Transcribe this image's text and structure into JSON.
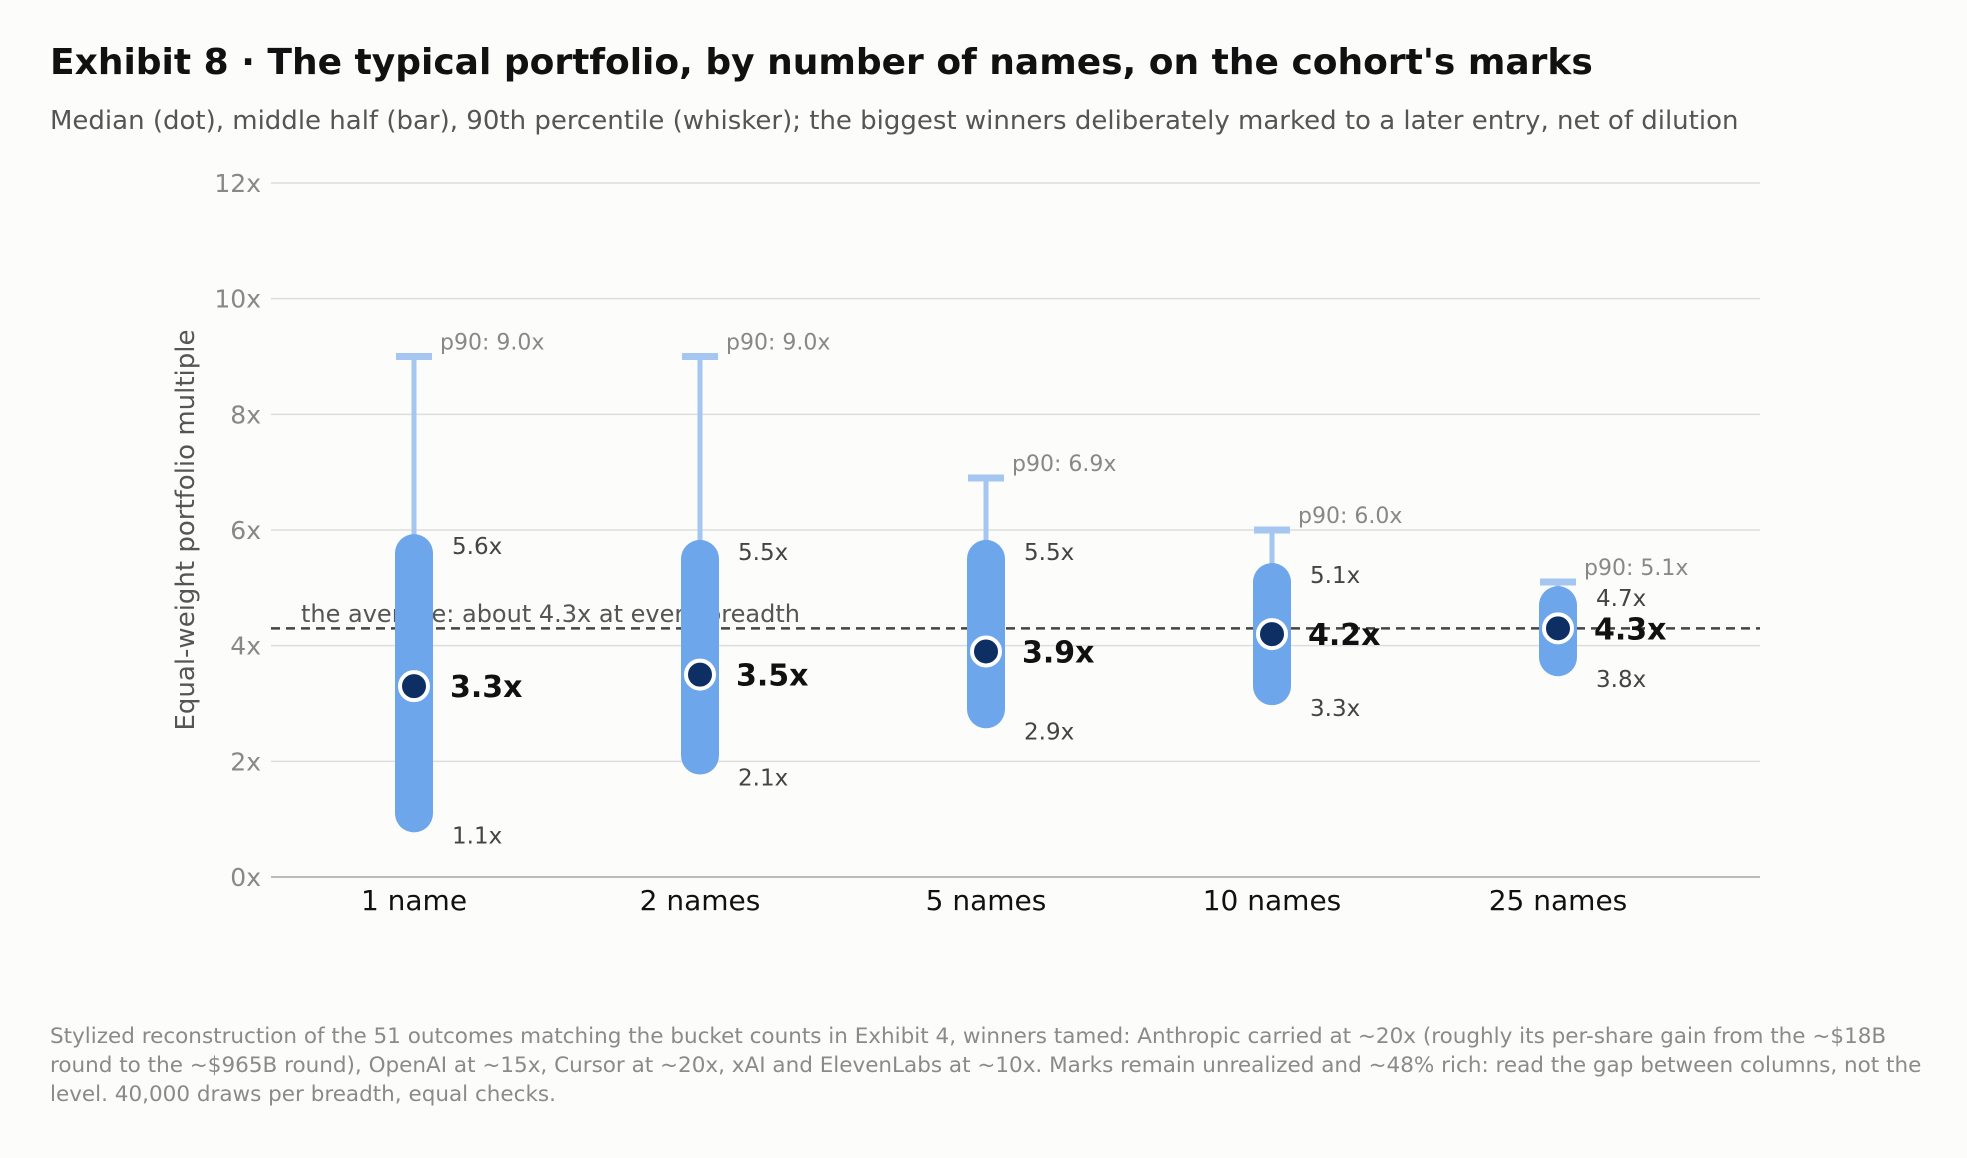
{
  "title": "Exhibit 8 · The typical portfolio, by number of names, on the cohort's marks",
  "subtitle": "Median (dot), middle half (bar), 90th percentile (whisker); the biggest winners deliberately marked to a later entry, net of dilution",
  "footnote": "Stylized reconstruction of the 51 outcomes matching the bucket counts in Exhibit 4, winners tamed: Anthropic carried at ~20x (roughly its per-share gain from the ~$18B round to the ~$965B round), OpenAI at ~15x, Cursor at ~20x, xAI and ElevenLabs at ~10x. Marks remain unrealized and ~48% rich: read the gap between columns, not the level. 40,000 draws per breadth, equal checks.",
  "colors": {
    "bar": "#6ea6eb",
    "whisker": "#a4c6f1",
    "median_dot": "#0d2f63",
    "median_ring": "#ffffff",
    "reference_line": "#444444",
    "grid": "#dddddd",
    "tick_text": "#888888",
    "range_label": "#444444",
    "median_label": "#111111",
    "p90_label": "#888888"
  },
  "chart_data": {
    "type": "range",
    "ylabel": "Equal-weight portfolio multiple",
    "xlabel": "",
    "ylim": [
      0,
      12
    ],
    "yticks": [
      0,
      2,
      4,
      6,
      8,
      10,
      12
    ],
    "ytick_labels": [
      "0x",
      "2x",
      "4x",
      "6x",
      "8x",
      "10x",
      "12x"
    ],
    "grid": true,
    "categories": [
      "1 name",
      "2 names",
      "5 names",
      "10 names",
      "25 names"
    ],
    "median": [
      3.3,
      3.5,
      3.9,
      4.2,
      4.3
    ],
    "q1": [
      1.1,
      2.1,
      2.9,
      3.3,
      3.8
    ],
    "q3": [
      5.6,
      5.5,
      5.5,
      5.1,
      4.7
    ],
    "p90": [
      9.0,
      9.0,
      6.9,
      6.0,
      5.1
    ],
    "median_labels": [
      "3.3x",
      "3.5x",
      "3.9x",
      "4.2x",
      "4.3x"
    ],
    "q1_labels": [
      "1.1x",
      "2.1x",
      "2.9x",
      "3.3x",
      "3.8x"
    ],
    "q3_labels": [
      "5.6x",
      "5.5x",
      "5.5x",
      "5.1x",
      "4.7x"
    ],
    "p90_labels": [
      "p90: 9.0x",
      "p90: 9.0x",
      "p90: 6.9x",
      "p90: 6.0x",
      "p90: 5.1x"
    ],
    "reference_line": {
      "value": 4.3,
      "label": "the average: about 4.3x at every breadth"
    }
  }
}
